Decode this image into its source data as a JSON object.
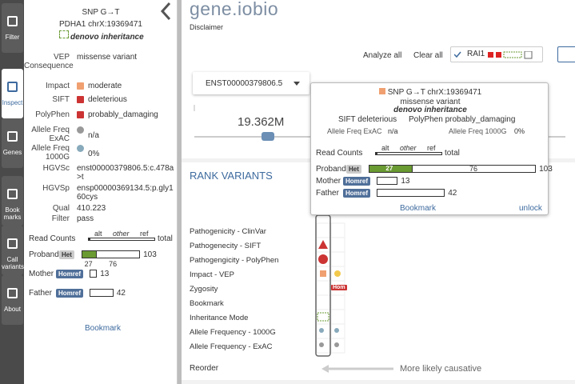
{
  "nav": [
    "Filter",
    "Inspect",
    "Genes",
    "Book marks",
    "Call variants",
    "About"
  ],
  "header": {
    "logo_a": "gene",
    "logo_b": ".iobio",
    "disclaimer": "Disclaimer",
    "analyze_all": "Analyze all",
    "clear_all": "Clear all",
    "gene_chip": "RAI1"
  },
  "transcript": "ENST00000379806.5",
  "position": "19.362M",
  "inspect": {
    "title": "SNP G→T",
    "location": "PDHA1 chrX:19369471",
    "inheritance": "denovo inheritance",
    "fields": [
      {
        "label": "VEP Consequence",
        "value": "missense variant"
      },
      {
        "label": "Impact",
        "value": "moderate"
      },
      {
        "label": "SIFT",
        "value": "deleterious"
      },
      {
        "label": "PolyPhen",
        "value": "probably_damaging"
      },
      {
        "label": "Allele Freq ExAC",
        "value": "n/a"
      },
      {
        "label": "Allele Freq 1000G",
        "value": "0%"
      },
      {
        "label": "HGVSc",
        "value": "enst00000379806.5:c.478a>t"
      },
      {
        "label": "HGVSp",
        "value": "ensp00000369134.5:p.gly160cys"
      },
      {
        "label": "Qual",
        "value": "410.223"
      },
      {
        "label": "Filter",
        "value": "pass"
      }
    ],
    "read_counts": {
      "label": "Read Counts",
      "alt": "alt",
      "other": "other",
      "ref": "ref",
      "total": "total",
      "samples": [
        {
          "name": "Proband",
          "zygosity": "Het",
          "alt": 27,
          "ref": 76,
          "depth": 103
        },
        {
          "name": "Mother",
          "zygosity": "Homref",
          "depth": 13
        },
        {
          "name": "Father",
          "zygosity": "Homref",
          "depth": 42
        }
      ]
    },
    "bookmark": "Bookmark"
  },
  "rank": {
    "title": "RANK VARIANTS",
    "rows": [
      "Pathogenicity - ClinVar",
      "Pathogenecity - SIFT",
      "Pathogengicity - PolyPhen",
      "Impact - VEP",
      "Zygosity",
      "Bookmark",
      "Inheritance Mode",
      "Allele Frequency - 1000G",
      "Allele Frequency - ExAC"
    ],
    "hom": "Hom",
    "reorder": "Reorder",
    "causative": "More likely causative"
  },
  "tooltip": {
    "title": "SNP G→T chrX:19369471",
    "consequence": "missense variant",
    "inheritance": "denovo inheritance",
    "sift": "SIFT deleterious",
    "polyphen": "PolyPhen probably_damaging",
    "exac_label": "Allele Freq ExAC",
    "exac": "n/a",
    "g1000_label": "Allele Freq 1000G",
    "g1000": "0%",
    "bookmark": "Bookmark",
    "unlock": "unlock"
  }
}
